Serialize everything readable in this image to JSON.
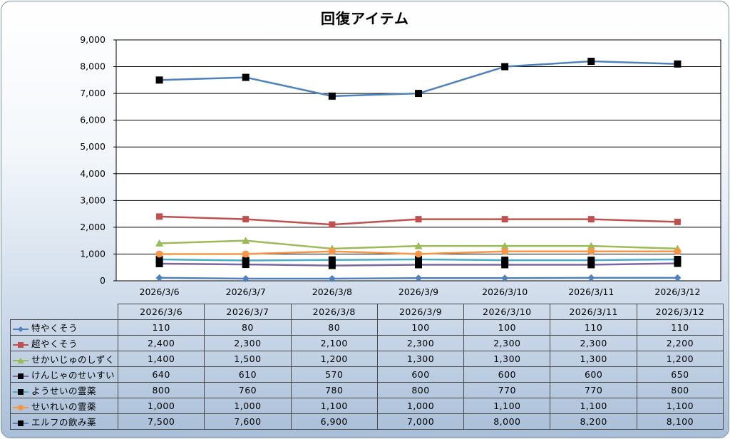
{
  "chart_data": {
    "type": "line",
    "title": "回復アイテム",
    "categories": [
      "2026/3/6",
      "2026/3/7",
      "2026/3/8",
      "2026/3/9",
      "2026/3/10",
      "2026/3/11",
      "2026/3/12"
    ],
    "ylim": [
      0,
      9000
    ],
    "yticks": [
      "0",
      "1,000",
      "2,000",
      "3,000",
      "4,000",
      "5,000",
      "6,000",
      "7,000",
      "8,000",
      "9,000"
    ],
    "grid": true,
    "legend": "data-table",
    "series": [
      {
        "name": "特やくそう",
        "color": "#4f81bd",
        "marker": "diamond",
        "values": [
          110,
          80,
          80,
          100,
          100,
          110,
          110
        ],
        "labels": [
          "110",
          "80",
          "80",
          "100",
          "100",
          "110",
          "110"
        ]
      },
      {
        "name": "超やくそう",
        "color": "#c0504d",
        "marker": "square",
        "values": [
          2400,
          2300,
          2100,
          2300,
          2300,
          2300,
          2200
        ],
        "labels": [
          "2,400",
          "2,300",
          "2,100",
          "2,300",
          "2,300",
          "2,300",
          "2,200"
        ]
      },
      {
        "name": "せかいじゅのしずく",
        "color": "#9bbb59",
        "marker": "triangle",
        "values": [
          1400,
          1500,
          1200,
          1300,
          1300,
          1300,
          1200
        ],
        "labels": [
          "1,400",
          "1,500",
          "1,200",
          "1,300",
          "1,300",
          "1,300",
          "1,200"
        ]
      },
      {
        "name": "けんじゃのせいすい",
        "color": "#8064a2",
        "marker": "blacksquare",
        "values": [
          640,
          610,
          570,
          600,
          600,
          600,
          650
        ],
        "labels": [
          "640",
          "610",
          "570",
          "600",
          "600",
          "600",
          "650"
        ]
      },
      {
        "name": "ようせいの霊薬",
        "color": "#4bacc6",
        "marker": "blacksquare",
        "values": [
          800,
          760,
          780,
          800,
          770,
          770,
          800
        ],
        "labels": [
          "800",
          "760",
          "780",
          "800",
          "770",
          "770",
          "800"
        ]
      },
      {
        "name": "せいれいの霊薬",
        "color": "#f79646",
        "marker": "circle",
        "values": [
          1000,
          1000,
          1100,
          1000,
          1100,
          1100,
          1100
        ],
        "labels": [
          "1,000",
          "1,000",
          "1,100",
          "1,000",
          "1,100",
          "1,100",
          "1,100"
        ]
      },
      {
        "name": "エルフの飲み薬",
        "color": "#4f81bd",
        "marker": "blacksquare",
        "values": [
          7500,
          7600,
          6900,
          7000,
          8000,
          8200,
          8100
        ],
        "labels": [
          "7,500",
          "7,600",
          "6,900",
          "7,000",
          "8,000",
          "8,200",
          "8,100"
        ]
      }
    ]
  }
}
